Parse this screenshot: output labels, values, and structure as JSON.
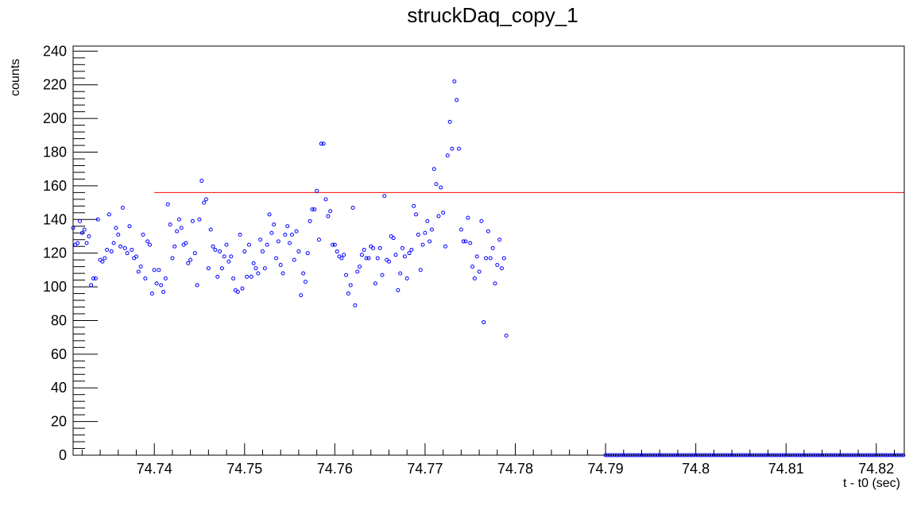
{
  "chart_data": {
    "type": "scatter",
    "title": "struckDaq_copy_1",
    "xlabel": "t - t0 (sec)",
    "ylabel": "counts",
    "xlim": [
      74.731,
      74.8231
    ],
    "ylim": [
      0,
      243
    ],
    "x_ticks": [
      74.74,
      74.75,
      74.76,
      74.77,
      74.78,
      74.79,
      74.8,
      74.81,
      74.82
    ],
    "x_tick_labels": [
      "74.74",
      "74.75",
      "74.76",
      "74.77",
      "74.78",
      "74.79",
      "74.8",
      "74.81",
      "74.82"
    ],
    "y_ticks": [
      0,
      20,
      40,
      60,
      80,
      100,
      120,
      140,
      160,
      180,
      200,
      220,
      240
    ],
    "y_tick_labels": [
      "0",
      "20",
      "40",
      "60",
      "80",
      "100",
      "120",
      "140",
      "160",
      "180",
      "200",
      "220",
      "240"
    ],
    "grid": false,
    "colors": {
      "points": "#0000ff",
      "line": "#ff0000",
      "axis": "#000000"
    },
    "threshold_line": {
      "y": 156,
      "x_start": 74.74,
      "x_end": 74.8231
    },
    "series": [
      {
        "x_start": 74.731,
        "x_step": 0.00025,
        "values": [
          135,
          125,
          126,
          139,
          132,
          134,
          126,
          130,
          101,
          105,
          105,
          140,
          116,
          115,
          117,
          122,
          143,
          121,
          126,
          135,
          131,
          124,
          147,
          123,
          120,
          136,
          122,
          117,
          118,
          109,
          112,
          131,
          105,
          127,
          125,
          96,
          110,
          102,
          110,
          101,
          97,
          105,
          149,
          137,
          117,
          124,
          133,
          140,
          135,
          125,
          126,
          114,
          116,
          139,
          120,
          101,
          140,
          163,
          150,
          152,
          111,
          134,
          124,
          122,
          106,
          121,
          111,
          118,
          125,
          115,
          118,
          105,
          98,
          97,
          131,
          99,
          121,
          106,
          125,
          106,
          114,
          111,
          108,
          128,
          121,
          111,
          125,
          143,
          132,
          137,
          117,
          127,
          113,
          108,
          131,
          136,
          126,
          131,
          116,
          133,
          121,
          95,
          108,
          103,
          120,
          139,
          146,
          146,
          157,
          128,
          185,
          185,
          152,
          142,
          145,
          125,
          125,
          121,
          118,
          117,
          119,
          107,
          96,
          101,
          147,
          89,
          109,
          112,
          119,
          122,
          117,
          117,
          124,
          123,
          102,
          117,
          123,
          107,
          154,
          116,
          115,
          130,
          129,
          119,
          98,
          108,
          123,
          118,
          105,
          120,
          122,
          148,
          143,
          131,
          110,
          125,
          132,
          139,
          127,
          134,
          170,
          161,
          142,
          159,
          144,
          124,
          178,
          198,
          182,
          222,
          211,
          182,
          134,
          127,
          127,
          141,
          126,
          112,
          105,
          118,
          109,
          139,
          79,
          117,
          133,
          117,
          123,
          102,
          113,
          128,
          111,
          117,
          71
        ]
      },
      {
        "x_start": 74.79,
        "x_step": 0.00025,
        "count": 134,
        "value": 0
      }
    ]
  }
}
